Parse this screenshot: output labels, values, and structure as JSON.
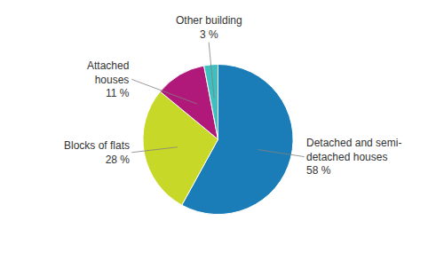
{
  "chart_data": {
    "type": "pie",
    "categories": [
      "Detached and semi-\ndetached houses",
      "Blocks of flats",
      "Attached\nhouses",
      "Other building"
    ],
    "values": [
      58,
      28,
      11,
      3
    ],
    "value_labels": [
      "58 %",
      "28 %",
      "11 %",
      "3 %"
    ],
    "colors": [
      "#1b7db8",
      "#c8d828",
      "#b0197a",
      "#40bfc0"
    ],
    "data_labels": true
  }
}
